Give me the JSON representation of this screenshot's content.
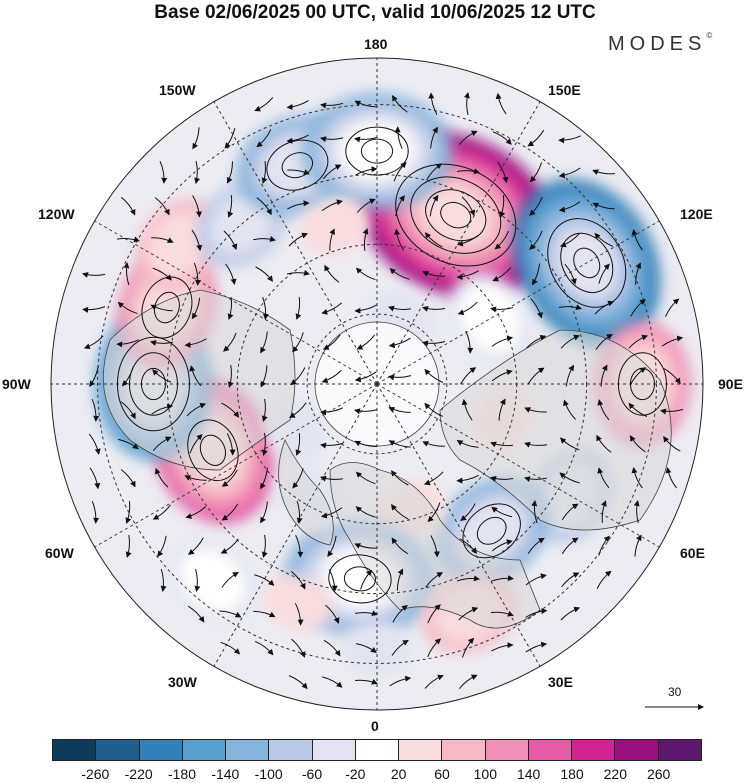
{
  "title": "Base 02/06/2025 00 UTC, valid 10/06/2025 12 UTC",
  "brand": {
    "name": "MODES",
    "mark": "©"
  },
  "map": {
    "projection": "north-polar-stereographic",
    "longitude_labels": {
      "top": "180",
      "top_right": "150E",
      "upper_right": "120E",
      "right": "90E",
      "lower_right": "60E",
      "bottom_right": "30E",
      "bottom": "0",
      "bottom_left": "30W",
      "lower_left": "60W",
      "left": "90W",
      "upper_left": "120W",
      "top_left": "150W"
    },
    "reference_vector": {
      "value": "30"
    },
    "anomalies": [
      {
        "lon": 155,
        "lat": 50,
        "value": 250
      },
      {
        "lon": 120,
        "lat": 38,
        "value": -200
      },
      {
        "lon": 90,
        "lat": 33,
        "value": 110
      },
      {
        "lon": 60,
        "lat": 42,
        "value": -90
      },
      {
        "lon": 38,
        "lat": 50,
        "value": -120
      },
      {
        "lon": 15,
        "lat": 62,
        "value": 40
      },
      {
        "lon": -5,
        "lat": 48,
        "value": -140
      },
      {
        "lon": -20,
        "lat": 40,
        "value": 50
      },
      {
        "lon": 22,
        "lat": 37,
        "value": 60
      },
      {
        "lon": 0,
        "lat": 33,
        "value": -40
      },
      {
        "lon": -68,
        "lat": 52,
        "value": 140
      },
      {
        "lon": -90,
        "lat": 42,
        "value": -160
      },
      {
        "lon": -110,
        "lat": 42,
        "value": 110
      },
      {
        "lon": -125,
        "lat": 38,
        "value": 60
      },
      {
        "lon": -140,
        "lat": 45,
        "value": -80
      },
      {
        "lon": -160,
        "lat": 40,
        "value": -110
      },
      {
        "lon": 180,
        "lat": 40,
        "value": -140
      },
      {
        "lon": -165,
        "lat": 55,
        "value": 40
      },
      {
        "lon": 120,
        "lat": 62,
        "value": -60
      },
      {
        "lon": 75,
        "lat": 62,
        "value": 50
      },
      {
        "lon": -40,
        "lat": 35,
        "value": -60
      },
      {
        "lon": -60,
        "lat": 70,
        "value": -40
      },
      {
        "lon": 160,
        "lat": 75,
        "value": -30
      },
      {
        "lon": -30,
        "lat": 62,
        "value": -50
      }
    ]
  },
  "colorbar": {
    "colors": [
      "#0d3b5c",
      "#1f5f8e",
      "#3480b8",
      "#589fd0",
      "#86b4dc",
      "#b8c8e6",
      "#e3e4f1",
      "#ffffff",
      "#f9dcde",
      "#f6b9c5",
      "#f08fb5",
      "#e55ba6",
      "#cf2391",
      "#99117f",
      "#5e1771"
    ],
    "ticks": [
      "-260",
      "-220",
      "-180",
      "-140",
      "-100",
      "-60",
      "-20",
      "20",
      "60",
      "100",
      "140",
      "180",
      "220",
      "260"
    ]
  }
}
